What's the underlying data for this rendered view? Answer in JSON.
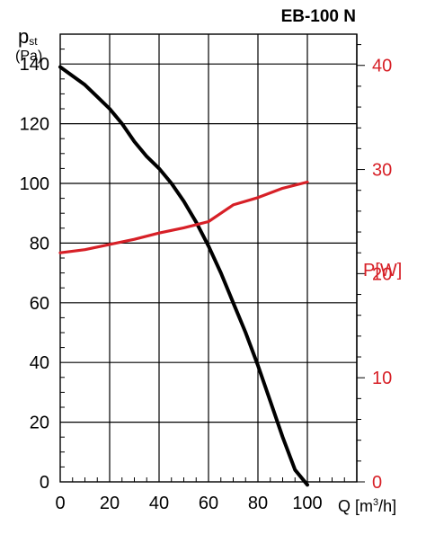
{
  "chart_data": {
    "type": "line",
    "title": "EB-100 N",
    "xlabel": {
      "symbol": "Q",
      "unit_before": "[m",
      "unit_sup": "3",
      "unit_after": "/h]"
    },
    "ylabel": {
      "symbol": "p",
      "subscript": "st",
      "unit": "(Pa)"
    },
    "y2label": {
      "symbol": "P",
      "unit": "[W]"
    },
    "xlim": [
      0,
      120
    ],
    "ylim": [
      0,
      150
    ],
    "y2lim": [
      0,
      43
    ],
    "x_ticks": [
      0,
      20,
      40,
      60,
      80,
      100
    ],
    "y_ticks": [
      0,
      20,
      40,
      60,
      80,
      100,
      120,
      140
    ],
    "y2_ticks": [
      0,
      10,
      20,
      30,
      40
    ],
    "grid": true,
    "colors": {
      "pressure": "#000000",
      "power": "#d72027",
      "grid": "#000000"
    },
    "series": [
      {
        "axis": "left",
        "x": [
          0,
          5,
          10,
          15,
          20,
          25,
          30,
          35,
          40,
          45,
          50,
          55,
          60,
          65,
          70,
          75,
          80,
          85,
          90,
          95,
          100
        ],
        "y": [
          139,
          136,
          133,
          129,
          125,
          120,
          114,
          109,
          105,
          100,
          94,
          87,
          79,
          70,
          60,
          50,
          39,
          27,
          15,
          4,
          -1
        ]
      },
      {
        "axis": "right",
        "x": [
          0,
          10,
          20,
          30,
          40,
          50,
          60,
          65,
          70,
          80,
          90,
          100
        ],
        "y": [
          22,
          22.3,
          22.8,
          23.3,
          23.9,
          24.4,
          25,
          25.8,
          26.6,
          27.3,
          28.2,
          28.8
        ]
      }
    ]
  }
}
